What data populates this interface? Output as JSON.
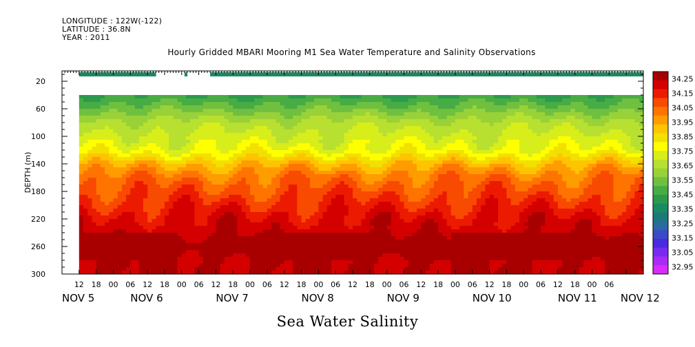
{
  "header": {
    "longitude": "LONGITUDE : 122W(-122)",
    "latitude": "LATITUDE : 36.8N",
    "year": "YEAR : 2011",
    "title": "Hourly Gridded MBARI Mooring M1 Sea Water Temperature and Salinity Observations"
  },
  "subtitle": "Sea Water Salinity",
  "chart_data": {
    "type": "heatmap",
    "title": "Hourly Gridded MBARI Mooring M1 Sea Water Temperature and Salinity Observations",
    "subtitle": "Sea Water Salinity",
    "ylabel": "DEPTH (m)",
    "xlabel": "",
    "x_range_hours": [
      0,
      204
    ],
    "y_range_depth_m": [
      5,
      300
    ],
    "y_reversed": true,
    "y_ticks": [
      20,
      60,
      100,
      140,
      180,
      220,
      260,
      300
    ],
    "x_hour_ticks": [
      "12",
      "18",
      "00",
      "06",
      "12",
      "18",
      "00",
      "06",
      "12",
      "18",
      "00",
      "06",
      "12",
      "18",
      "00",
      "06",
      "12",
      "18",
      "00",
      "06",
      "12",
      "18",
      "00",
      "06",
      "12",
      "18",
      "00",
      "06",
      "12",
      "18",
      "00",
      "06"
    ],
    "x_day_labels": [
      {
        "label": "NOV  5",
        "hour": 0
      },
      {
        "label": "NOV  6",
        "hour": 24
      },
      {
        "label": "NOV  7",
        "hour": 54
      },
      {
        "label": "NOV  8",
        "hour": 84
      },
      {
        "label": "NOV  9",
        "hour": 114
      },
      {
        "label": "NOV 10",
        "hour": 144
      },
      {
        "label": "NOV 11",
        "hour": 174
      },
      {
        "label": "NOV 12",
        "hour": 196
      }
    ],
    "colorbar": {
      "labels": [
        "34.25",
        "34.15",
        "34.05",
        "33.95",
        "33.85",
        "33.75",
        "33.65",
        "33.55",
        "33.45",
        "33.35",
        "33.25",
        "33.15",
        "33.05",
        "32.95"
      ],
      "colors": [
        "#a80000",
        "#d40000",
        "#ec1a00",
        "#f84a00",
        "#ff7400",
        "#ff9c00",
        "#ffc400",
        "#f2e000",
        "#ffff00",
        "#d8ee1a",
        "#b8e030",
        "#98d238",
        "#70c040",
        "#48ac44",
        "#2c9a4c",
        "#1a8a60",
        "#1a7a7a",
        "#2a6aa0",
        "#3a4ac8",
        "#4a2ae0",
        "#7a2af0",
        "#a82af4",
        "#d82af8"
      ],
      "range": [
        32.95,
        34.25
      ]
    },
    "surface_strip": {
      "depth_m": 10,
      "value_approx": 33.35,
      "gaps_hours": [
        [
          0,
          6
        ],
        [
          33,
          43
        ],
        [
          44,
          52
        ]
      ]
    },
    "profile_start_depth_m": 40,
    "data_start_hour": 6,
    "depth_profile": [
      {
        "depth": 40,
        "value": 33.45
      },
      {
        "depth": 60,
        "value": 33.55
      },
      {
        "depth": 80,
        "value": 33.65
      },
      {
        "depth": 100,
        "value": 33.7
      },
      {
        "depth": 120,
        "value": 33.75
      },
      {
        "depth": 140,
        "value": 33.9
      },
      {
        "depth": 160,
        "value": 34.0
      },
      {
        "depth": 180,
        "value": 34.05
      },
      {
        "depth": 200,
        "value": 34.1
      },
      {
        "depth": 220,
        "value": 34.15
      },
      {
        "depth": 240,
        "value": 34.18
      },
      {
        "depth": 260,
        "value": 34.25
      },
      {
        "depth": 280,
        "value": 34.2
      },
      {
        "depth": 300,
        "value": 34.2
      }
    ]
  }
}
